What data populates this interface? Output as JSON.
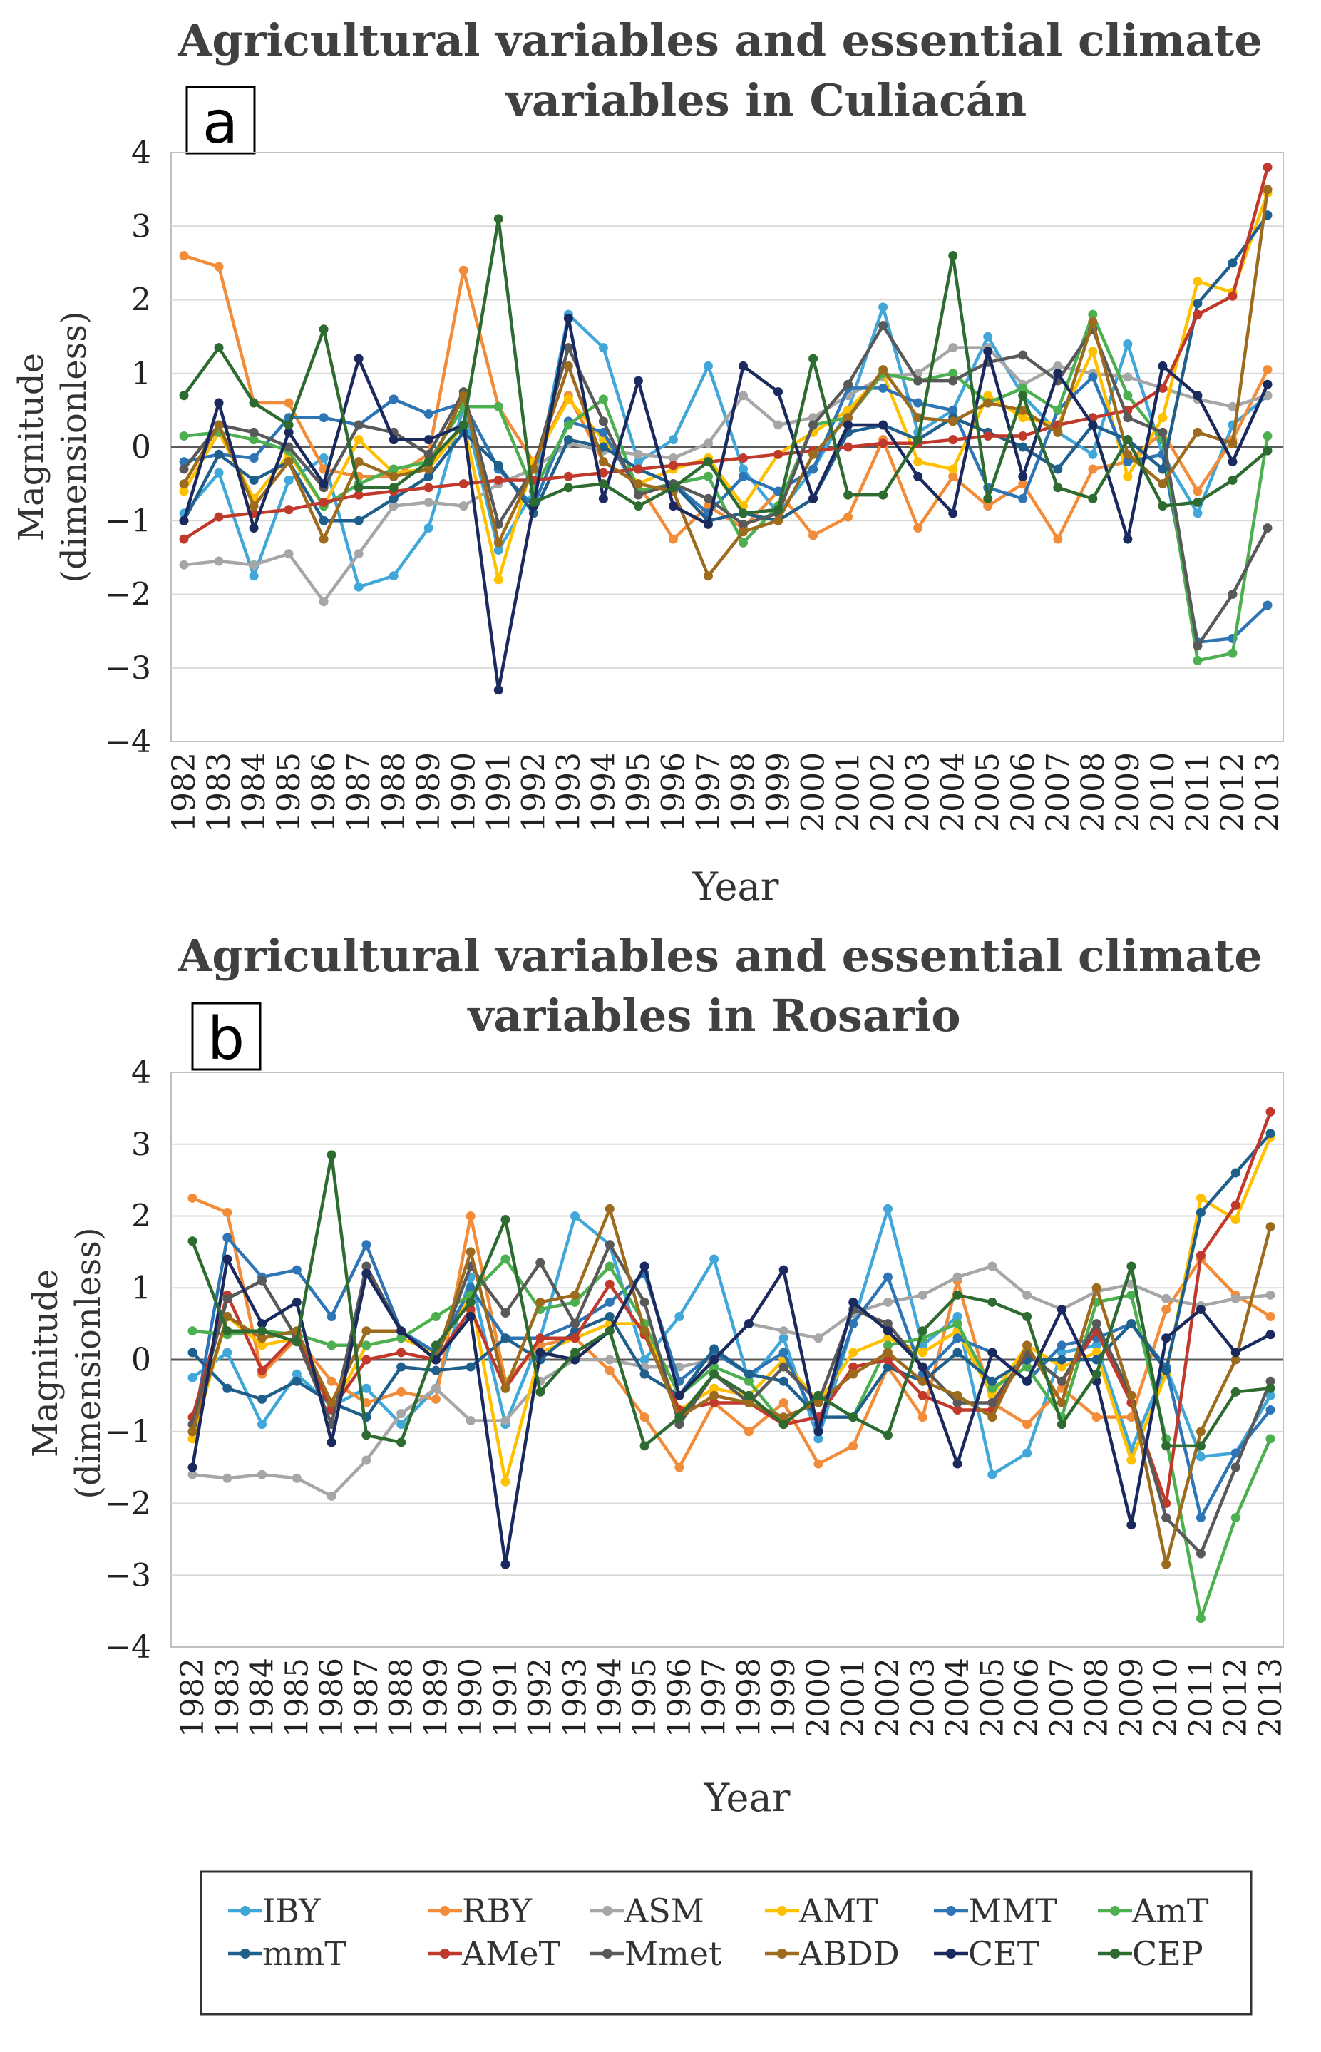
{
  "chart_data": [
    {
      "panel": "a",
      "type": "line",
      "title": "Agricultural variables and essential climate variables in Culiacán",
      "xlabel": "Year",
      "ylabel": "Magnitude (dimensionless)",
      "ylim": [
        -4,
        4
      ],
      "yticks": [
        "4",
        "3",
        "2",
        "1",
        "0",
        "−1",
        "−2",
        "−3",
        "−4"
      ],
      "categories": [
        "1982",
        "1983",
        "1984",
        "1985",
        "1986",
        "1987",
        "1988",
        "1989",
        "1990",
        "1991",
        "1992",
        "1993",
        "1994",
        "1995",
        "1996",
        "1997",
        "1998",
        "1999",
        "2000",
        "2001",
        "2002",
        "2003",
        "2004",
        "2005",
        "2006",
        "2007",
        "2008",
        "2009",
        "2010",
        "2011",
        "2012",
        "2013"
      ],
      "series": [
        {
          "name": "IBY",
          "color": "#41a7d9",
          "values": [
            -0.9,
            -0.35,
            -1.75,
            -0.45,
            -0.15,
            -1.9,
            -1.75,
            -1.1,
            0.55,
            -1.4,
            -0.6,
            1.8,
            1.35,
            -0.2,
            0.1,
            1.1,
            -0.3,
            -0.9,
            -0.3,
            0.5,
            1.9,
            0.2,
            0.5,
            1.5,
            0.7,
            0.2,
            -0.1,
            1.4,
            -0.1,
            -0.9,
            0.3,
            0.7
          ]
        },
        {
          "name": "RBY",
          "color": "#f28c38",
          "values": [
            2.6,
            2.45,
            0.6,
            0.6,
            -0.3,
            -0.4,
            -0.4,
            -0.1,
            2.4,
            0.55,
            -0.2,
            0.7,
            -0.2,
            -0.5,
            -1.25,
            -0.8,
            -1.1,
            -0.6,
            -1.2,
            -0.95,
            0.1,
            -1.1,
            -0.4,
            -0.8,
            -0.5,
            -1.25,
            -0.3,
            -0.2,
            0.2,
            -0.6,
            0.1,
            1.05
          ]
        },
        {
          "name": "ASM",
          "color": "#a6a6a6",
          "values": [
            -1.6,
            -1.55,
            -1.6,
            -1.45,
            -2.1,
            -1.45,
            -0.8,
            -0.75,
            -0.8,
            -0.5,
            -0.3,
            0.05,
            -0.05,
            -0.1,
            -0.15,
            0.05,
            0.7,
            0.3,
            0.4,
            0.7,
            0.95,
            1.0,
            1.35,
            1.35,
            0.85,
            1.1,
            1.0,
            0.95,
            0.8,
            0.65,
            0.55,
            0.7
          ]
        },
        {
          "name": "AMT",
          "color": "#ffc000",
          "values": [
            -0.6,
            0.2,
            -0.7,
            -0.1,
            -0.8,
            0.1,
            -0.35,
            -0.3,
            0.3,
            -1.8,
            -0.2,
            0.65,
            0.1,
            -0.5,
            -0.3,
            -0.15,
            -0.8,
            -0.1,
            0.2,
            0.5,
            1.0,
            -0.2,
            -0.3,
            0.7,
            0.4,
            0.3,
            1.3,
            -0.4,
            0.4,
            2.25,
            2.1,
            3.45
          ]
        },
        {
          "name": "MMT",
          "color": "#2e75b6",
          "values": [
            -0.2,
            -0.1,
            -0.15,
            0.4,
            0.4,
            0.3,
            0.65,
            0.45,
            0.6,
            -0.3,
            -0.8,
            0.35,
            0.2,
            -0.6,
            -0.5,
            -0.9,
            -0.4,
            -0.6,
            -0.3,
            0.8,
            0.8,
            0.6,
            0.5,
            -0.55,
            -0.7,
            0.5,
            0.95,
            -0.2,
            -0.1,
            -2.65,
            -2.6,
            -2.15
          ]
        },
        {
          "name": "AmT",
          "color": "#4caf50",
          "values": [
            0.15,
            0.2,
            0.1,
            -0.05,
            -0.8,
            -0.5,
            -0.3,
            -0.2,
            0.55,
            0.55,
            -0.6,
            0.3,
            0.65,
            -0.6,
            -0.5,
            -0.4,
            -1.3,
            -0.8,
            0.3,
            0.4,
            1.0,
            0.9,
            1.0,
            0.6,
            0.8,
            0.5,
            1.8,
            0.7,
            0.1,
            -2.9,
            -2.8,
            0.15
          ]
        },
        {
          "name": "mmT",
          "color": "#1f5f8b",
          "values": [
            -1.0,
            -0.1,
            -0.45,
            -0.2,
            -1.0,
            -1.0,
            -0.7,
            -0.4,
            0.2,
            -0.25,
            -0.9,
            0.1,
            0.0,
            -0.3,
            -0.5,
            -1.0,
            -0.9,
            -1.0,
            -0.7,
            0.2,
            0.3,
            0.1,
            0.4,
            0.2,
            0.0,
            -0.3,
            0.3,
            0.1,
            -0.3,
            1.95,
            2.5,
            3.15
          ]
        },
        {
          "name": "AMeT",
          "color": "#c0392b",
          "values": [
            -1.25,
            -0.95,
            -0.9,
            -0.85,
            -0.75,
            -0.65,
            -0.6,
            -0.55,
            -0.5,
            -0.45,
            -0.45,
            -0.4,
            -0.35,
            -0.3,
            -0.25,
            -0.2,
            -0.15,
            -0.1,
            -0.05,
            0.0,
            0.05,
            0.05,
            0.1,
            0.15,
            0.15,
            0.3,
            0.4,
            0.5,
            0.8,
            1.8,
            2.05,
            3.8
          ]
        },
        {
          "name": "Mmet",
          "color": "#595959",
          "values": [
            -0.3,
            0.3,
            0.2,
            0.0,
            -0.55,
            0.3,
            0.2,
            -0.1,
            0.75,
            -1.05,
            -0.3,
            1.35,
            0.35,
            -0.65,
            -0.5,
            -0.7,
            -1.05,
            -0.9,
            0.3,
            0.85,
            1.65,
            0.9,
            0.9,
            1.15,
            1.25,
            0.9,
            1.6,
            0.4,
            0.2,
            -2.7,
            -2.0,
            -1.1
          ]
        },
        {
          "name": "ABDD",
          "color": "#9c6b1e",
          "values": [
            -0.5,
            0.3,
            -0.8,
            -0.2,
            -1.25,
            -0.2,
            -0.4,
            -0.3,
            0.7,
            -1.3,
            -0.3,
            1.1,
            -0.2,
            -0.5,
            -0.6,
            -1.75,
            -1.15,
            -1.0,
            -0.1,
            0.4,
            1.05,
            0.4,
            0.35,
            0.6,
            0.5,
            0.2,
            1.7,
            -0.1,
            -0.5,
            0.2,
            0.05,
            3.5
          ]
        },
        {
          "name": "CET",
          "color": "#1b2a5e",
          "values": [
            -1.0,
            0.6,
            -1.1,
            0.2,
            -0.5,
            1.2,
            0.1,
            0.1,
            0.3,
            -3.3,
            -0.8,
            1.75,
            -0.7,
            0.9,
            -0.8,
            -1.05,
            1.1,
            0.75,
            -0.7,
            0.3,
            0.3,
            -0.4,
            -0.9,
            1.3,
            -0.4,
            1.0,
            0.3,
            -1.25,
            1.1,
            0.7,
            -0.2,
            0.85
          ]
        },
        {
          "name": "CEP",
          "color": "#2e6b30",
          "values": [
            0.7,
            1.35,
            0.6,
            0.3,
            1.6,
            -0.55,
            -0.55,
            -0.2,
            0.3,
            3.1,
            -0.75,
            -0.55,
            -0.5,
            -0.8,
            -0.55,
            -0.2,
            -0.9,
            -0.85,
            1.2,
            -0.65,
            -0.65,
            0.1,
            2.6,
            -0.7,
            0.7,
            -0.55,
            -0.7,
            0.1,
            -0.8,
            -0.75,
            -0.45,
            -0.05
          ]
        }
      ]
    },
    {
      "panel": "b",
      "type": "line",
      "title": "Agricultural variables and essential climate variables in Rosario",
      "xlabel": "Year",
      "ylabel": "Magnitude (dimensionless)",
      "ylim": [
        -4,
        4
      ],
      "yticks": [
        "4",
        "3",
        "2",
        "1",
        "0",
        "−1",
        "−2",
        "−3",
        "−4"
      ],
      "categories": [
        "1982",
        "1983",
        "1984",
        "1985",
        "1986",
        "1987",
        "1988",
        "1989",
        "1990",
        "1991",
        "1992",
        "1993",
        "1994",
        "1995",
        "1996",
        "1997",
        "1998",
        "1999",
        "2000",
        "2001",
        "2002",
        "2003",
        "2004",
        "2005",
        "2006",
        "2007",
        "2008",
        "2009",
        "2010",
        "2011",
        "2012",
        "2013"
      ],
      "series": [
        {
          "name": "IBY",
          "color": "#41a7d9",
          "values": [
            -0.25,
            0.1,
            -0.9,
            -0.2,
            -0.65,
            -0.4,
            -0.9,
            -0.4,
            1.15,
            -0.9,
            0.3,
            2.0,
            1.6,
            0.0,
            0.6,
            1.4,
            -0.3,
            0.3,
            -1.1,
            0.5,
            2.1,
            0.2,
            0.6,
            -1.6,
            -1.3,
            0.1,
            0.2,
            -1.25,
            -0.1,
            -1.35,
            -1.3,
            -0.5
          ]
        },
        {
          "name": "RBY",
          "color": "#f28c38",
          "values": [
            2.25,
            2.05,
            -0.2,
            0.3,
            -0.3,
            -0.6,
            -0.45,
            -0.55,
            2.0,
            -0.3,
            0.2,
            0.3,
            -0.15,
            -0.8,
            -1.5,
            -0.6,
            -1.0,
            -0.6,
            -1.45,
            -1.2,
            -0.1,
            -0.8,
            1.1,
            -0.6,
            -0.9,
            -0.4,
            -0.8,
            -0.8,
            0.7,
            1.4,
            0.9,
            0.6
          ]
        },
        {
          "name": "ASM",
          "color": "#a6a6a6",
          "values": [
            -1.6,
            -1.65,
            -1.6,
            -1.65,
            -1.9,
            -1.4,
            -0.75,
            -0.4,
            -0.85,
            -0.85,
            -0.3,
            0.0,
            0.0,
            -0.1,
            -0.1,
            0.0,
            0.5,
            0.4,
            0.3,
            0.65,
            0.8,
            0.9,
            1.15,
            1.3,
            0.9,
            0.7,
            0.95,
            1.05,
            0.85,
            0.75,
            0.85,
            0.9
          ]
        },
        {
          "name": "AMT",
          "color": "#ffc000",
          "values": [
            -1.1,
            0.6,
            0.2,
            0.3,
            -0.7,
            0.2,
            0.3,
            0.1,
            0.9,
            -1.7,
            0.1,
            0.3,
            0.5,
            0.5,
            -0.7,
            -0.4,
            -0.5,
            0.0,
            -0.6,
            0.1,
            0.3,
            0.1,
            0.4,
            -0.5,
            0.2,
            -0.1,
            0.1,
            -1.4,
            -0.2,
            2.25,
            1.95,
            3.1
          ]
        },
        {
          "name": "MMT",
          "color": "#2e75b6",
          "values": [
            -1.0,
            1.7,
            1.15,
            1.25,
            0.6,
            1.6,
            0.4,
            0.1,
            1.0,
            0.3,
            0.3,
            0.5,
            0.8,
            1.2,
            -0.3,
            0.1,
            -0.2,
            0.1,
            -0.9,
            0.5,
            1.15,
            -0.2,
            0.3,
            0.1,
            -0.3,
            0.2,
            0.3,
            0.5,
            -0.1,
            -2.2,
            -1.3,
            -0.7
          ]
        },
        {
          "name": "AmT",
          "color": "#4caf50",
          "values": [
            0.4,
            0.35,
            0.4,
            0.35,
            0.2,
            0.2,
            0.3,
            0.6,
            0.9,
            1.4,
            0.7,
            0.8,
            1.3,
            0.5,
            -0.5,
            -0.1,
            -0.3,
            -0.9,
            -0.5,
            -0.8,
            0.2,
            0.3,
            0.5,
            -0.4,
            -0.1,
            -0.8,
            0.8,
            0.9,
            -1.1,
            -3.6,
            -2.2,
            -1.1
          ]
        },
        {
          "name": "mmT",
          "color": "#1f5f8b",
          "values": [
            0.1,
            -0.4,
            -0.55,
            -0.3,
            -0.6,
            -0.8,
            -0.1,
            -0.15,
            -0.1,
            0.3,
            0.0,
            0.4,
            0.6,
            -0.2,
            -0.5,
            0.15,
            -0.2,
            -0.3,
            -0.8,
            -0.8,
            -0.1,
            -0.3,
            0.1,
            -0.3,
            0.0,
            0.0,
            0.0,
            0.5,
            -0.15,
            2.05,
            2.6,
            3.15
          ]
        },
        {
          "name": "AMeT",
          "color": "#c0392b",
          "values": [
            -0.8,
            0.9,
            -0.15,
            0.35,
            -0.7,
            0.0,
            0.1,
            0.0,
            0.7,
            -0.4,
            0.3,
            0.3,
            1.05,
            0.35,
            -0.7,
            -0.6,
            -0.6,
            -0.9,
            -0.8,
            -0.1,
            0.0,
            -0.5,
            -0.7,
            -0.7,
            0.1,
            -0.3,
            0.4,
            -0.6,
            -2.0,
            1.45,
            2.15,
            3.45
          ]
        },
        {
          "name": "Mmet",
          "color": "#595959",
          "values": [
            -0.9,
            0.85,
            1.1,
            0.3,
            -0.9,
            1.3,
            0.4,
            0.0,
            1.3,
            0.65,
            1.35,
            0.5,
            1.6,
            0.8,
            -0.9,
            -0.2,
            -0.6,
            -0.1,
            -0.6,
            0.7,
            0.5,
            -0.1,
            -0.6,
            -0.6,
            0.1,
            -0.3,
            0.5,
            -0.5,
            -2.2,
            -2.7,
            -1.5,
            -0.3
          ]
        },
        {
          "name": "ABDD",
          "color": "#9c6b1e",
          "values": [
            -1.0,
            0.6,
            0.3,
            0.4,
            -0.6,
            0.4,
            0.4,
            0.0,
            1.5,
            -0.4,
            0.8,
            0.9,
            2.1,
            0.4,
            -0.8,
            -0.5,
            -0.6,
            -0.8,
            -0.6,
            -0.2,
            0.1,
            -0.3,
            -0.5,
            -0.8,
            0.2,
            -0.6,
            1.0,
            -0.5,
            -2.85,
            -1.0,
            0.0,
            1.85
          ]
        },
        {
          "name": "CET",
          "color": "#1b2a5e",
          "values": [
            -1.5,
            1.4,
            0.5,
            0.8,
            -1.15,
            1.2,
            0.4,
            0.0,
            0.6,
            -2.85,
            0.1,
            0.0,
            0.4,
            1.3,
            -0.5,
            0.0,
            0.5,
            1.25,
            -1.0,
            0.8,
            0.4,
            -0.1,
            -1.45,
            0.1,
            -0.3,
            0.7,
            -0.3,
            -2.3,
            0.3,
            0.7,
            0.1,
            0.35
          ]
        },
        {
          "name": "CEP",
          "color": "#2e6b30",
          "values": [
            1.65,
            0.4,
            0.4,
            0.25,
            2.85,
            -1.05,
            -1.15,
            0.2,
            0.8,
            1.95,
            -0.45,
            0.1,
            0.4,
            -1.2,
            -0.8,
            -0.2,
            -0.5,
            -0.9,
            -0.5,
            -0.8,
            -1.05,
            0.4,
            0.9,
            0.8,
            0.6,
            -0.9,
            -0.2,
            1.3,
            -1.2,
            -1.2,
            -0.45,
            -0.4
          ]
        }
      ]
    }
  ],
  "legend": {
    "placement": "bottom",
    "items": [
      "IBY",
      "RBY",
      "ASM",
      "AMT",
      "MMT",
      "AmT",
      "mmT",
      "AMeT",
      "Mmet",
      "ABDD",
      "CET",
      "CEP"
    ]
  }
}
